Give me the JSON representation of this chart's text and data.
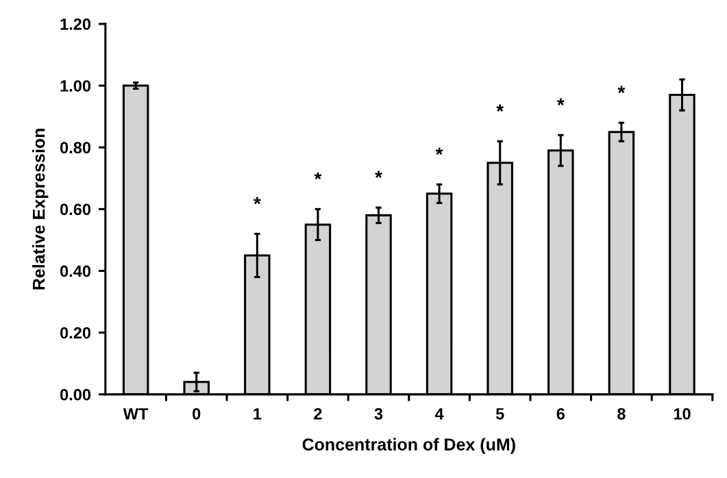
{
  "chart_data": {
    "type": "bar",
    "xlabel": "Concentration of Dex (uM)",
    "ylabel": "Relative Expression",
    "categories": [
      "WT",
      "0",
      "1",
      "2",
      "3",
      "4",
      "5",
      "6",
      "8",
      "10"
    ],
    "values": [
      1.0,
      0.04,
      0.45,
      0.55,
      0.58,
      0.65,
      0.75,
      0.79,
      0.85,
      0.97
    ],
    "errors": [
      0.01,
      0.03,
      0.07,
      0.05,
      0.025,
      0.03,
      0.07,
      0.05,
      0.03,
      0.05
    ],
    "color": "#d3d3d3",
    "ylim": [
      0,
      1.2
    ],
    "yticks": [
      {
        "value": 0,
        "label": "0.00"
      },
      {
        "value": 0.2,
        "label": "0.20"
      },
      {
        "value": 0.4,
        "label": "0.40"
      },
      {
        "value": 0.6,
        "label": "0.60"
      },
      {
        "value": 0.8,
        "label": "0.80"
      },
      {
        "value": 1.0,
        "label": "1.00"
      },
      {
        "value": 1.2,
        "label": "1.20"
      }
    ],
    "annotations": [
      {
        "text": "*",
        "x": "1",
        "y": 0.45
      },
      {
        "text": "*",
        "x": "2",
        "y": 0.55
      },
      {
        "text": "*",
        "x": "3",
        "y": 0.58
      },
      {
        "text": "*",
        "x": "4",
        "y": 0.65
      },
      {
        "text": "*",
        "x": "5",
        "y": 0.75
      },
      {
        "text": "*",
        "x": "6",
        "y": 0.79
      },
      {
        "text": "*",
        "x": "8",
        "y": 0.85
      }
    ],
    "grid": false
  }
}
